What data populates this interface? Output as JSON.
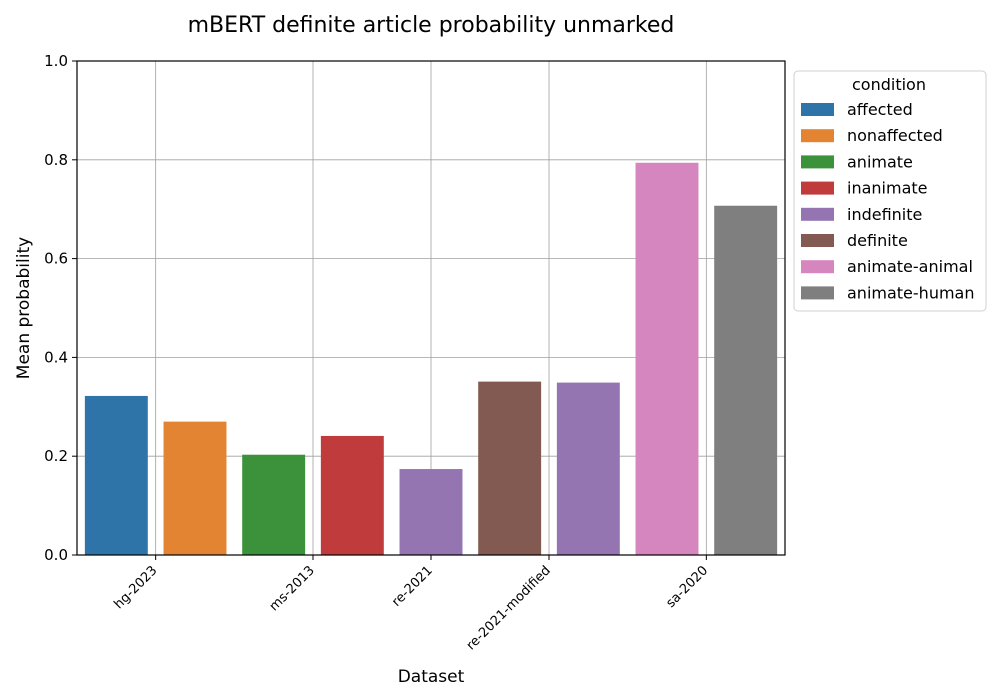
{
  "chart_data": {
    "type": "bar",
    "title": "mBERT definite article probability unmarked",
    "xlabel": "Dataset",
    "ylabel": "Mean probability",
    "ylim": [
      0,
      1.0
    ],
    "yticks": [
      "0.0",
      "0.2",
      "0.4",
      "0.6",
      "0.8",
      "1.0"
    ],
    "grid": true,
    "legend": {
      "title": "condition",
      "placement": "outside-right-top",
      "entries": [
        {
          "label": "affected",
          "color": "#2e74a8"
        },
        {
          "label": "nonaffected",
          "color": "#e28431"
        },
        {
          "label": "animate",
          "color": "#3b923b"
        },
        {
          "label": "inanimate",
          "color": "#c03b3b"
        },
        {
          "label": "indefinite",
          "color": "#9474b1"
        },
        {
          "label": "definite",
          "color": "#835a52"
        },
        {
          "label": "animate-animal",
          "color": "#d586bf"
        },
        {
          "label": "animate-human",
          "color": "#7f7f7f"
        }
      ]
    },
    "categories": [
      "hg-2023",
      "ms-2013",
      "re-2021",
      "re-2021-modified",
      "sa-2020"
    ],
    "bars": [
      {
        "dataset": "hg-2023",
        "condition": "affected",
        "value": 0.322
      },
      {
        "dataset": "hg-2023",
        "condition": "nonaffected",
        "value": 0.27
      },
      {
        "dataset": "ms-2013",
        "condition": "animate",
        "value": 0.203
      },
      {
        "dataset": "ms-2013",
        "condition": "inanimate",
        "value": 0.241
      },
      {
        "dataset": "re-2021",
        "condition": "indefinite",
        "value": 0.174
      },
      {
        "dataset": "re-2021-modified",
        "condition": "definite",
        "value": 0.351
      },
      {
        "dataset": "re-2021-modified",
        "condition": "indefinite",
        "value": 0.349
      },
      {
        "dataset": "sa-2020",
        "condition": "animate-animal",
        "value": 0.794
      },
      {
        "dataset": "sa-2020",
        "condition": "animate-human",
        "value": 0.707
      }
    ]
  }
}
